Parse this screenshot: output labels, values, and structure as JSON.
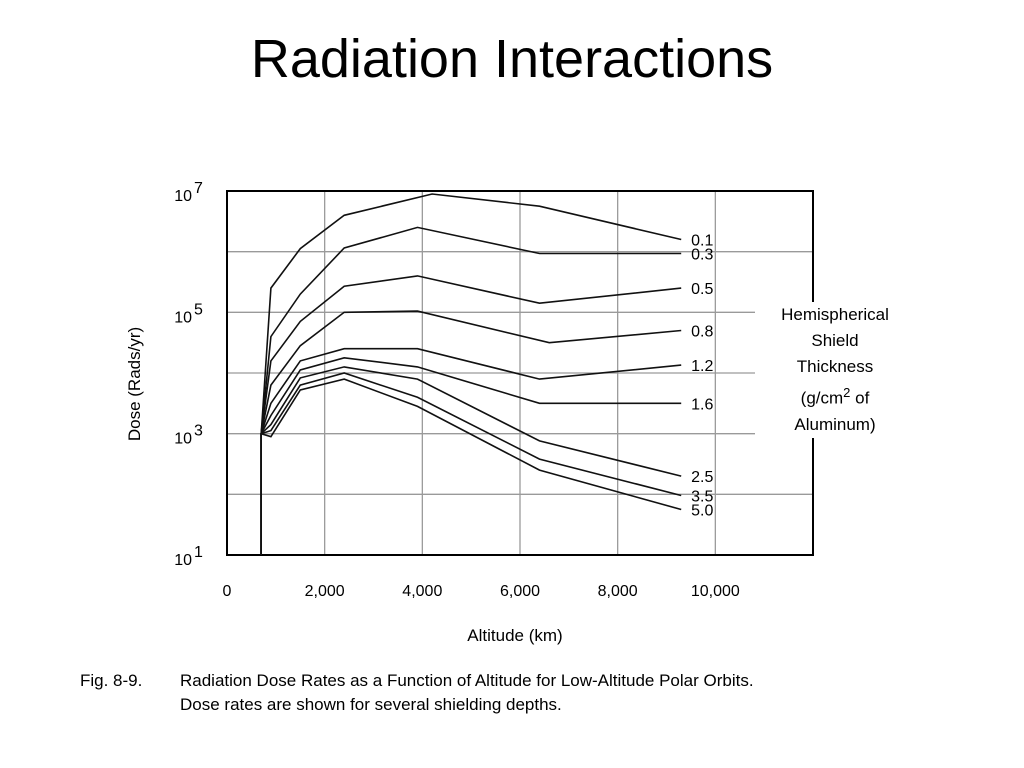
{
  "slide_title": "Radiation Interactions",
  "caption": {
    "label": "Fig. 8-9.",
    "line1": "Radiation Dose Rates as a Function of Altitude for Low-Altitude Polar Orbits.",
    "line2": "Dose rates are shown for several shielding depths."
  },
  "legend_box": {
    "line1": "Hemispherical",
    "line2": "Shield",
    "line3": "Thickness",
    "line4_pre": "(g/cm",
    "line4_sup": "2",
    "line4_post": " of",
    "line5": "Aluminum)"
  },
  "chart_data": {
    "type": "line",
    "xlabel": "Altitude (km)",
    "ylabel": "Dose (Rads/yr)",
    "xlim": [
      0,
      12000
    ],
    "ylim": [
      1,
      7
    ],
    "y_scale": "log10",
    "grid": true,
    "x_ticks": [
      {
        "value": 0,
        "label": "0"
      },
      {
        "value": 2000,
        "label": "2,000"
      },
      {
        "value": 4000,
        "label": "4,000"
      },
      {
        "value": 6000,
        "label": "6,000"
      },
      {
        "value": 8000,
        "label": "8,000"
      },
      {
        "value": 10000,
        "label": "10,000"
      }
    ],
    "y_ticks": [
      {
        "value": 1,
        "base": "10",
        "exp": "1"
      },
      {
        "value": 3,
        "base": "10",
        "exp": "3"
      },
      {
        "value": 5,
        "base": "10",
        "exp": "5"
      },
      {
        "value": 7,
        "base": "10",
        "exp": "7"
      }
    ],
    "series": [
      {
        "name": "0.1",
        "x": [
          700,
          900,
          1500,
          2400,
          4200,
          6400,
          9300
        ],
        "y": [
          3.0,
          5.4,
          6.05,
          6.6,
          6.95,
          6.75,
          6.2
        ]
      },
      {
        "name": "0.3",
        "x": [
          700,
          900,
          1500,
          2400,
          3900,
          6400,
          9300
        ],
        "y": [
          3.0,
          4.6,
          5.3,
          6.06,
          6.4,
          5.97,
          5.97
        ]
      },
      {
        "name": "0.5",
        "x": [
          700,
          900,
          1500,
          2400,
          3900,
          6400,
          9300
        ],
        "y": [
          3.0,
          4.2,
          4.85,
          5.43,
          5.6,
          5.15,
          5.4
        ]
      },
      {
        "name": "0.8",
        "x": [
          700,
          900,
          1500,
          2400,
          3900,
          6600,
          9300
        ],
        "y": [
          3.0,
          3.8,
          4.45,
          5.0,
          5.02,
          4.5,
          4.7
        ]
      },
      {
        "name": "1.2",
        "x": [
          700,
          900,
          1500,
          2400,
          3900,
          6400,
          9300
        ],
        "y": [
          3.0,
          3.5,
          4.2,
          4.4,
          4.4,
          3.9,
          4.13
        ]
      },
      {
        "name": "1.6",
        "x": [
          700,
          900,
          1500,
          2400,
          3900,
          6400,
          9300
        ],
        "y": [
          3.0,
          3.3,
          4.05,
          4.25,
          4.1,
          3.5,
          3.5
        ]
      },
      {
        "name": "2.5",
        "x": [
          700,
          900,
          1500,
          2400,
          3900,
          6400,
          9300
        ],
        "y": [
          3.0,
          3.15,
          3.92,
          4.1,
          3.9,
          2.88,
          2.3
        ]
      },
      {
        "name": "3.5",
        "x": [
          700,
          900,
          1500,
          2400,
          3900,
          6400,
          9300
        ],
        "y": [
          3.0,
          3.05,
          3.8,
          4.0,
          3.6,
          2.58,
          1.98
        ]
      },
      {
        "name": "5.0",
        "x": [
          700,
          900,
          1500,
          2400,
          3900,
          6400,
          9300
        ],
        "y": [
          3.0,
          2.95,
          3.72,
          3.9,
          3.45,
          2.4,
          1.75
        ]
      }
    ]
  }
}
